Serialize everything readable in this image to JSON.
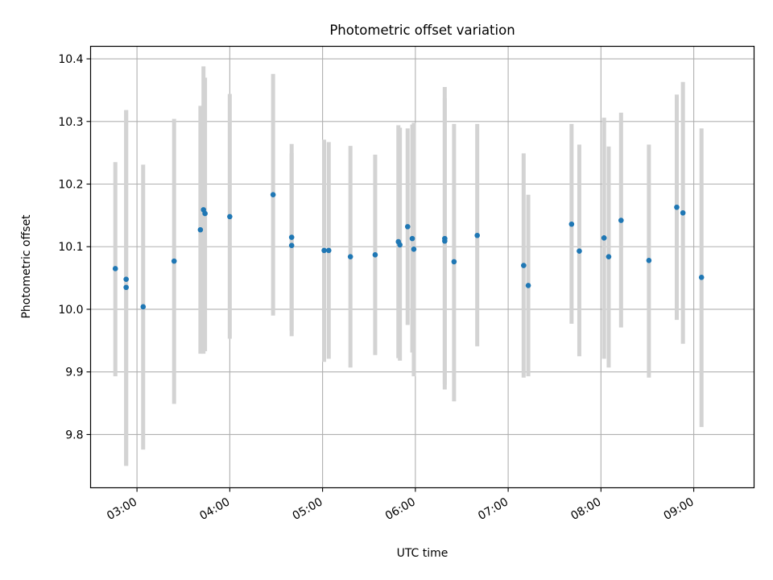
{
  "chart_data": {
    "type": "scatter",
    "title": "Photometric offset variation",
    "xlabel": "UTC time",
    "ylabel": "Photometric offset",
    "x_tick_labels": [
      "03:00",
      "04:00",
      "05:00",
      "06:00",
      "07:00",
      "08:00",
      "09:00"
    ],
    "y_tick_labels": [
      "9.8",
      "9.9",
      "10.0",
      "10.1",
      "10.2",
      "10.3",
      "10.4"
    ],
    "xlim": [
      "02:30",
      "09:39"
    ],
    "ylim": [
      9.715,
      10.42
    ],
    "grid": true,
    "colors": {
      "point": "#1f77b4",
      "errorbar": "#d3d3d3",
      "grid": "#b0b0b0"
    },
    "points": [
      {
        "x": "02:46",
        "y": 10.065,
        "lo": 9.893,
        "hi": 10.235
      },
      {
        "x": "02:53",
        "y": 10.048,
        "lo": 9.75,
        "hi": 10.318
      },
      {
        "x": "02:53",
        "y": 10.035,
        "lo": 9.75,
        "hi": 10.318
      },
      {
        "x": "03:04",
        "y": 10.004,
        "lo": 9.776,
        "hi": 10.231
      },
      {
        "x": "03:24",
        "y": 10.077,
        "lo": 9.849,
        "hi": 10.304
      },
      {
        "x": "03:41",
        "y": 10.127,
        "lo": 9.929,
        "hi": 10.325
      },
      {
        "x": "03:43",
        "y": 10.159,
        "lo": 9.929,
        "hi": 10.388
      },
      {
        "x": "03:44",
        "y": 10.153,
        "lo": 9.933,
        "hi": 10.37
      },
      {
        "x": "04:00",
        "y": 10.148,
        "lo": 9.953,
        "hi": 10.344
      },
      {
        "x": "04:28",
        "y": 10.183,
        "lo": 9.99,
        "hi": 10.376
      },
      {
        "x": "04:40",
        "y": 10.115,
        "lo": 9.966,
        "hi": 10.264
      },
      {
        "x": "04:40",
        "y": 10.102,
        "lo": 9.957,
        "hi": 10.249
      },
      {
        "x": "05:01",
        "y": 10.094,
        "lo": 9.916,
        "hi": 10.271
      },
      {
        "x": "05:04",
        "y": 10.094,
        "lo": 9.921,
        "hi": 10.267
      },
      {
        "x": "05:18",
        "y": 10.084,
        "lo": 9.907,
        "hi": 10.261
      },
      {
        "x": "05:34",
        "y": 10.087,
        "lo": 9.927,
        "hi": 10.247
      },
      {
        "x": "05:49",
        "y": 10.108,
        "lo": 9.922,
        "hi": 10.294
      },
      {
        "x": "05:50",
        "y": 10.103,
        "lo": 9.918,
        "hi": 10.29
      },
      {
        "x": "05:55",
        "y": 10.132,
        "lo": 9.975,
        "hi": 10.289
      },
      {
        "x": "05:58",
        "y": 10.113,
        "lo": 9.931,
        "hi": 10.295
      },
      {
        "x": "05:59",
        "y": 10.096,
        "lo": 9.893,
        "hi": 10.298
      },
      {
        "x": "06:19",
        "y": 10.113,
        "lo": 9.872,
        "hi": 10.355
      },
      {
        "x": "06:19",
        "y": 10.109,
        "lo": 9.88,
        "hi": 10.337
      },
      {
        "x": "06:25",
        "y": 10.076,
        "lo": 9.853,
        "hi": 10.296
      },
      {
        "x": "06:40",
        "y": 10.118,
        "lo": 9.941,
        "hi": 10.296
      },
      {
        "x": "07:10",
        "y": 10.07,
        "lo": 9.891,
        "hi": 10.249
      },
      {
        "x": "07:13",
        "y": 10.038,
        "lo": 9.893,
        "hi": 10.183
      },
      {
        "x": "07:41",
        "y": 10.136,
        "lo": 9.977,
        "hi": 10.296
      },
      {
        "x": "07:46",
        "y": 10.093,
        "lo": 9.925,
        "hi": 10.263
      },
      {
        "x": "08:02",
        "y": 10.114,
        "lo": 9.921,
        "hi": 10.306
      },
      {
        "x": "08:05",
        "y": 10.084,
        "lo": 9.907,
        "hi": 10.26
      },
      {
        "x": "08:13",
        "y": 10.142,
        "lo": 9.971,
        "hi": 10.314
      },
      {
        "x": "08:31",
        "y": 10.078,
        "lo": 9.891,
        "hi": 10.263
      },
      {
        "x": "08:49",
        "y": 10.163,
        "lo": 9.983,
        "hi": 10.343
      },
      {
        "x": "08:53",
        "y": 10.154,
        "lo": 9.945,
        "hi": 10.363
      },
      {
        "x": "09:05",
        "y": 10.051,
        "lo": 9.812,
        "hi": 10.289
      }
    ]
  }
}
